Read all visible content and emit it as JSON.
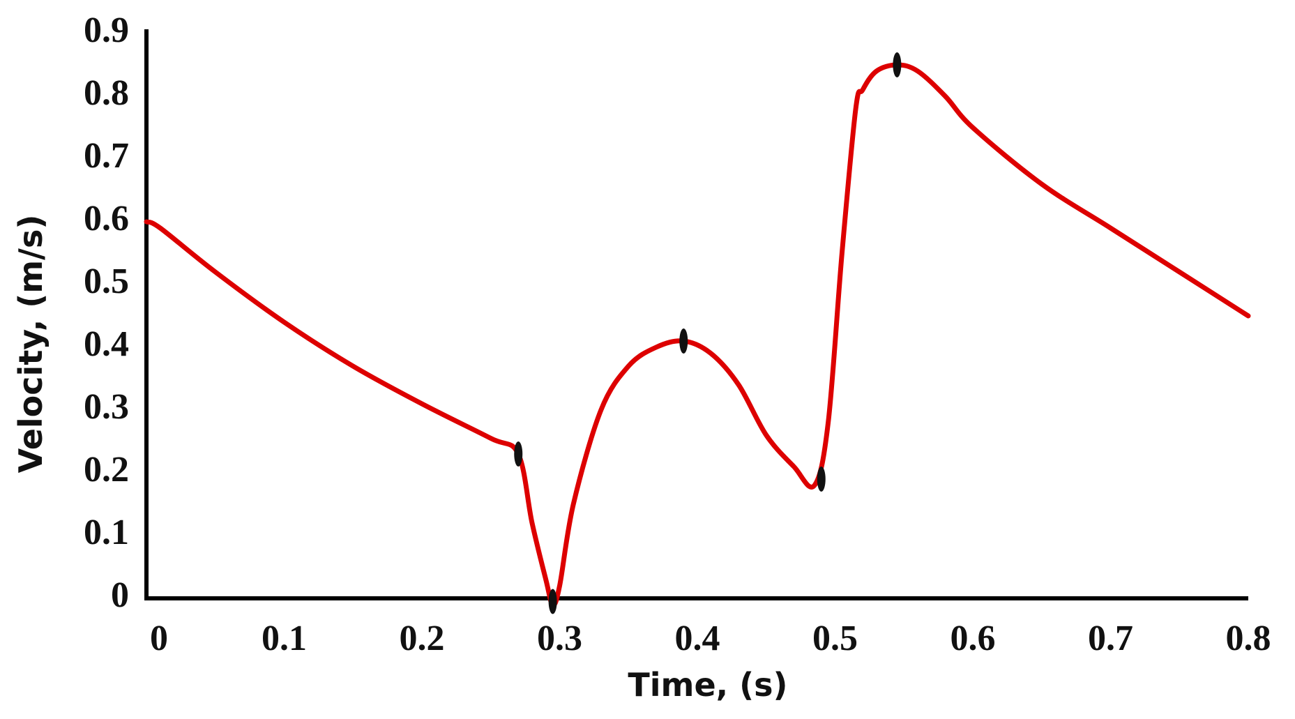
{
  "chart_data": {
    "type": "line",
    "title": "",
    "xlabel": "Time, (s)",
    "ylabel": "Velocity, (m/s)",
    "xlim": [
      0,
      0.8
    ],
    "ylim": [
      0,
      0.9
    ],
    "x_ticks": [
      "0",
      "0.1",
      "0.2",
      "0.3",
      "0.4",
      "0.5",
      "0.6",
      "0.7",
      "0.8"
    ],
    "y_ticks": [
      "0",
      "0.1",
      "0.2",
      "0.3",
      "0.4",
      "0.5",
      "0.6",
      "0.7",
      "0.8",
      "0.9"
    ],
    "grid": false,
    "legend": "none",
    "series": [
      {
        "color": "#dd0000",
        "x": [
          0.0,
          0.01,
          0.05,
          0.1,
          0.15,
          0.2,
          0.25,
          0.27,
          0.28,
          0.29,
          0.295,
          0.3,
          0.31,
          0.33,
          0.35,
          0.37,
          0.39,
          0.41,
          0.43,
          0.45,
          0.47,
          0.485,
          0.495,
          0.505,
          0.515,
          0.52,
          0.53,
          0.545,
          0.56,
          0.58,
          0.6,
          0.65,
          0.7,
          0.75,
          0.8
        ],
        "y": [
          0.6,
          0.59,
          0.52,
          0.44,
          0.37,
          0.31,
          0.255,
          0.23,
          0.12,
          0.03,
          -0.01,
          0.02,
          0.15,
          0.3,
          0.37,
          0.4,
          0.41,
          0.39,
          0.34,
          0.26,
          0.21,
          0.18,
          0.28,
          0.55,
          0.78,
          0.81,
          0.84,
          0.85,
          0.84,
          0.8,
          0.75,
          0.66,
          0.59,
          0.52,
          0.45
        ]
      }
    ],
    "markers": {
      "color": "#111111",
      "x": [
        0.27,
        0.295,
        0.39,
        0.49,
        0.545
      ],
      "y": [
        0.23,
        -0.005,
        0.41,
        0.19,
        0.85
      ]
    }
  }
}
